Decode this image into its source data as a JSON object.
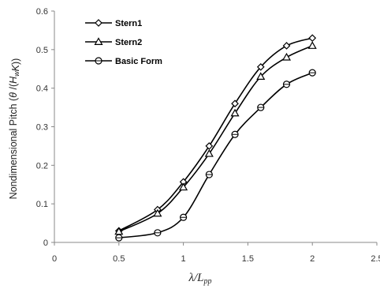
{
  "chart_data": {
    "type": "line",
    "title": "",
    "xlabel": {
      "main": "λ/L",
      "sub": "pp"
    },
    "ylabel": "Nondimensional Pitch (θ/(H_wK))",
    "xlim": [
      0,
      2.5
    ],
    "ylim": [
      0,
      0.6
    ],
    "x_ticks": [
      "0",
      "0.5",
      "1",
      "1.5",
      "2",
      "2.5"
    ],
    "y_ticks": [
      "0",
      "0.1",
      "0.2",
      "0.3",
      "0.4",
      "0.5",
      "0.6"
    ],
    "grid": false,
    "legend_position": "top-left",
    "x": [
      0.5,
      0.8,
      1.0,
      1.2,
      1.4,
      1.6,
      1.8,
      2.0
    ],
    "series": [
      {
        "name": "Stern1",
        "marker": "diamond",
        "values": [
          0.03,
          0.085,
          0.157,
          0.25,
          0.36,
          0.455,
          0.51,
          0.53
        ]
      },
      {
        "name": "Stern2",
        "marker": "triangle",
        "values": [
          0.028,
          0.075,
          0.143,
          0.23,
          0.335,
          0.43,
          0.48,
          0.51
        ]
      },
      {
        "name": "Basic Form",
        "marker": "circle",
        "values": [
          0.012,
          0.025,
          0.065,
          0.176,
          0.28,
          0.35,
          0.41,
          0.44
        ]
      }
    ]
  }
}
